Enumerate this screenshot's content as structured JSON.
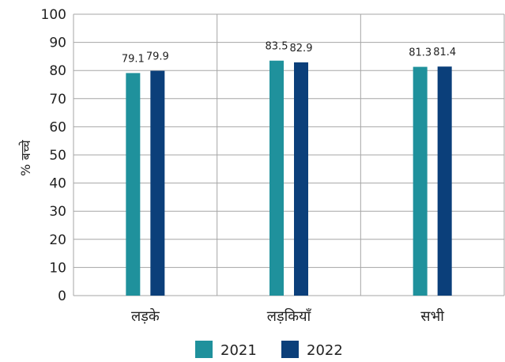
{
  "chart_data": {
    "type": "bar",
    "categories": [
      "लड़के",
      "लड़कियाँ",
      "सभी"
    ],
    "series": [
      {
        "name": "2021",
        "values": [
          79.1,
          83.5,
          81.3
        ],
        "color": "#1f919c"
      },
      {
        "name": "2022",
        "values": [
          79.9,
          82.9,
          81.4
        ],
        "color": "#0b3f7a"
      }
    ],
    "title": "",
    "xlabel": "",
    "ylabel": "% बच्चे",
    "ylim": [
      0,
      100
    ],
    "yticks": [
      0,
      10,
      20,
      30,
      40,
      50,
      60,
      70,
      80,
      90,
      100
    ],
    "grid": true,
    "legend_position": "bottom-center"
  }
}
